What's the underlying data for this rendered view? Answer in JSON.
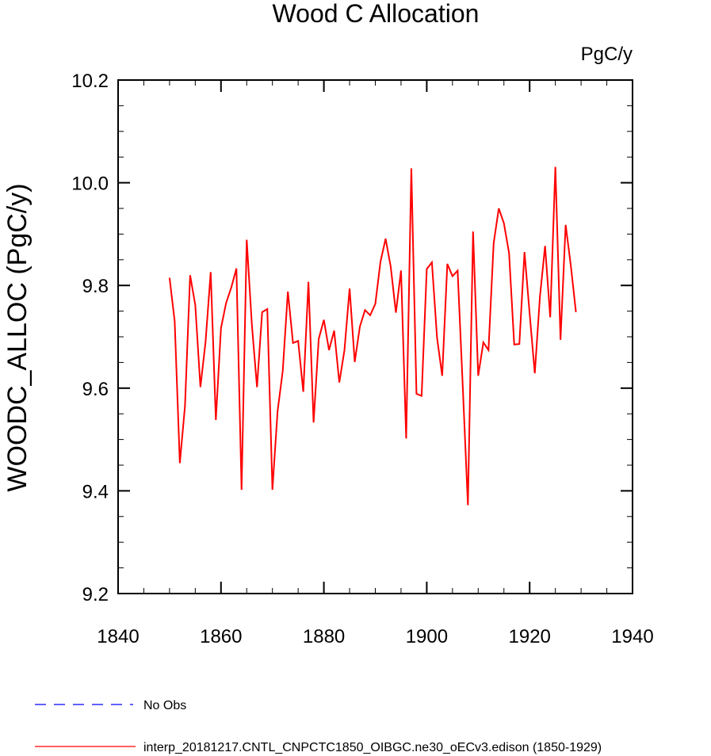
{
  "chart_data": {
    "type": "line",
    "title": "Wood C Allocation",
    "units_label": "PgC/y",
    "ylabel": "WOODC_ALLOC  (PgC/y)",
    "xlabel": "",
    "xlim": [
      1840,
      1940
    ],
    "ylim": [
      9.2,
      10.2
    ],
    "x_ticks": [
      1840,
      1860,
      1880,
      1900,
      1920,
      1940
    ],
    "x_tick_labels": [
      "1840",
      "1860",
      "1880",
      "1900",
      "1920",
      "1940"
    ],
    "y_ticks": [
      9.2,
      9.4,
      9.6,
      9.8,
      10.0,
      10.2
    ],
    "y_tick_labels": [
      "9.2",
      "9.4",
      "9.6",
      "9.8",
      "10.0",
      "10.2"
    ],
    "x_minor_step": 5,
    "y_minor_step": 0.05,
    "series": [
      {
        "name": "interp_20181217.CNTL_CNPCTC1850_OIBGC.ne30_oECv3.edison (1850-1929)",
        "color": "#ff0000",
        "x": [
          1850,
          1851,
          1852,
          1853,
          1854,
          1855,
          1856,
          1857,
          1858,
          1859,
          1860,
          1861,
          1862,
          1863,
          1864,
          1865,
          1866,
          1867,
          1868,
          1869,
          1870,
          1871,
          1872,
          1873,
          1874,
          1875,
          1876,
          1877,
          1878,
          1879,
          1880,
          1881,
          1882,
          1883,
          1884,
          1885,
          1886,
          1887,
          1888,
          1889,
          1890,
          1891,
          1892,
          1893,
          1894,
          1895,
          1896,
          1897,
          1898,
          1899,
          1900,
          1901,
          1902,
          1903,
          1904,
          1905,
          1906,
          1907,
          1908,
          1909,
          1910,
          1911,
          1912,
          1913,
          1914,
          1915,
          1916,
          1917,
          1918,
          1919,
          1920,
          1921,
          1922,
          1923,
          1924,
          1925,
          1926,
          1927,
          1928,
          1929
        ],
        "values": [
          9.815,
          9.73,
          9.454,
          9.565,
          9.82,
          9.762,
          9.602,
          9.69,
          9.826,
          9.538,
          9.717,
          9.766,
          9.796,
          9.833,
          9.402,
          9.889,
          9.724,
          9.602,
          9.748,
          9.754,
          9.402,
          9.555,
          9.633,
          9.788,
          9.688,
          9.692,
          9.593,
          9.807,
          9.533,
          9.696,
          9.733,
          9.674,
          9.712,
          9.611,
          9.674,
          9.794,
          9.651,
          9.72,
          9.752,
          9.742,
          9.764,
          9.846,
          9.891,
          9.836,
          9.747,
          9.829,
          9.502,
          10.028,
          9.589,
          9.585,
          9.832,
          9.845,
          9.698,
          9.624,
          9.842,
          9.818,
          9.829,
          9.603,
          9.372,
          9.905,
          9.624,
          9.689,
          9.674,
          9.882,
          9.95,
          9.921,
          9.863,
          9.685,
          9.686,
          9.865,
          9.745,
          9.629,
          9.778,
          9.877,
          9.738,
          10.031,
          9.694,
          9.918,
          9.839,
          9.748
        ]
      }
    ],
    "legend": [
      {
        "label": "No Obs",
        "color": "#0000ff",
        "style": "dashed"
      },
      {
        "label": "interp_20181217.CNTL_CNPCTC1850_OIBGC.ne30_oECv3.edison (1850-1929)",
        "color": "#ff0000",
        "style": "solid"
      }
    ]
  }
}
